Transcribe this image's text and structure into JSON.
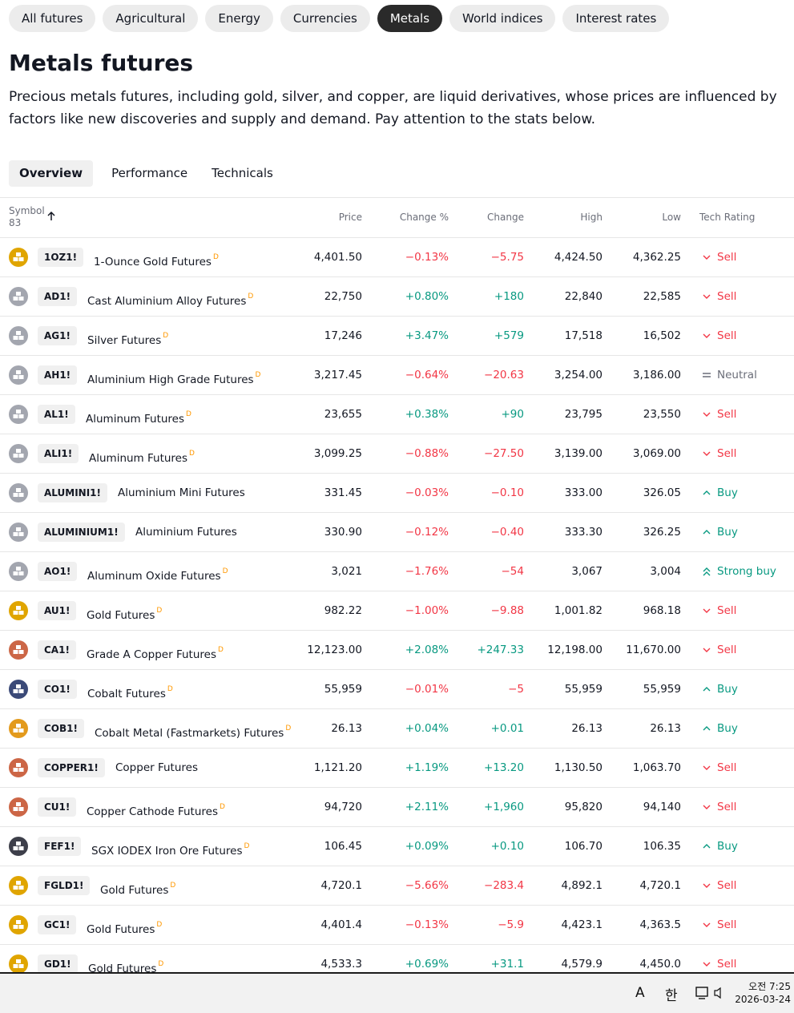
{
  "tabs": [
    "All futures",
    "Agricultural",
    "Energy",
    "Currencies",
    "Metals",
    "World indices",
    "Interest rates"
  ],
  "title": "Metals futures",
  "description": "Precious metals futures, including gold, silver, and copper, are liquid derivatives, whose prices are influenced by factors like new discoveries and supply and demand. Pay attention to the stats below.",
  "subtabs": [
    "Overview",
    "Performance",
    "Technicals"
  ],
  "table": {
    "columns": [
      "Symbol",
      "Price",
      "Change %",
      "Change",
      "High",
      "Low",
      "Tech Rating"
    ],
    "symbol_count": "83",
    "rows": [
      {
        "symbol": "1OZ1!",
        "name": "1-Ounce Gold Futures",
        "badge": "D",
        "price": "4,401.50",
        "change_pct": "−0.13%",
        "change": "−5.75",
        "high": "4,424.50",
        "low": "4,362.25",
        "rating": "Sell",
        "rating_icon": "down",
        "rating_color": "#f23645",
        "icon_color": "#e0a500"
      },
      {
        "symbol": "AD1!",
        "name": "Cast Aluminium Alloy Futures",
        "badge": "D",
        "price": "22,750",
        "change_pct": "+0.80%",
        "change": "+180",
        "high": "22,840",
        "low": "22,585",
        "rating": "Sell",
        "rating_icon": "down",
        "rating_color": "#f23645",
        "icon_color": "#a3a6af"
      },
      {
        "symbol": "AG1!",
        "name": "Silver Futures",
        "badge": "D",
        "price": "17,246",
        "change_pct": "+3.47%",
        "change": "+579",
        "high": "17,518",
        "low": "16,502",
        "rating": "Sell",
        "rating_icon": "down",
        "rating_color": "#f23645",
        "icon_color": "#a3a6af"
      },
      {
        "symbol": "AH1!",
        "name": "Aluminium High Grade Futures",
        "badge": "D",
        "price": "3,217.45",
        "change_pct": "−0.64%",
        "change": "−20.63",
        "high": "3,254.00",
        "low": "3,186.00",
        "rating": "Neutral",
        "rating_icon": "equal",
        "rating_color": "#6a6d78",
        "icon_color": "#a3a6af"
      },
      {
        "symbol": "AL1!",
        "name": "Aluminum Futures",
        "badge": "D",
        "price": "23,655",
        "change_pct": "+0.38%",
        "change": "+90",
        "high": "23,795",
        "low": "23,550",
        "rating": "Sell",
        "rating_icon": "down",
        "rating_color": "#f23645",
        "icon_color": "#a3a6af"
      },
      {
        "symbol": "ALI1!",
        "name": "Aluminum Futures",
        "badge": "D",
        "price": "3,099.25",
        "change_pct": "−0.88%",
        "change": "−27.50",
        "high": "3,139.00",
        "low": "3,069.00",
        "rating": "Sell",
        "rating_icon": "down",
        "rating_color": "#f23645",
        "icon_color": "#a3a6af"
      },
      {
        "symbol": "ALUMINI1!",
        "name": "Aluminium Mini Futures",
        "price": "331.45",
        "change_pct": "−0.03%",
        "change": "−0.10",
        "high": "333.00",
        "low": "326.05",
        "rating": "Buy",
        "rating_icon": "up",
        "rating_color": "#089981",
        "icon_color": "#a3a6af"
      },
      {
        "symbol": "ALUMINIUM1!",
        "name": "Aluminium Futures",
        "price": "330.90",
        "change_pct": "−0.12%",
        "change": "−0.40",
        "high": "333.30",
        "low": "326.25",
        "rating": "Buy",
        "rating_icon": "up",
        "rating_color": "#089981",
        "icon_color": "#a3a6af"
      },
      {
        "symbol": "AO1!",
        "name": "Aluminum Oxide Futures",
        "badge": "D",
        "price": "3,021",
        "change_pct": "−1.76%",
        "change": "−54",
        "high": "3,067",
        "low": "3,004",
        "rating": "Strong buy",
        "rating_icon": "double-up",
        "rating_color": "#089981",
        "icon_color": "#a3a6af"
      },
      {
        "symbol": "AU1!",
        "name": "Gold Futures",
        "badge": "D",
        "price": "982.22",
        "change_pct": "−1.00%",
        "change": "−9.88",
        "high": "1,001.82",
        "low": "968.18",
        "rating": "Sell",
        "rating_icon": "down",
        "rating_color": "#f23645",
        "icon_color": "#e0a500"
      },
      {
        "symbol": "CA1!",
        "name": "Grade A Copper Futures",
        "badge": "D",
        "price": "12,123.00",
        "change_pct": "+2.08%",
        "change": "+247.33",
        "high": "12,198.00",
        "low": "11,670.00",
        "rating": "Sell",
        "rating_icon": "down",
        "rating_color": "#f23645",
        "icon_color": "#cc6646"
      },
      {
        "symbol": "CO1!",
        "name": "Cobalt Futures",
        "badge": "D",
        "price": "55,959",
        "change_pct": "−0.01%",
        "change": "−5",
        "high": "55,959",
        "low": "55,959",
        "rating": "Buy",
        "rating_icon": "up",
        "rating_color": "#089981",
        "icon_color": "#3b4a78"
      },
      {
        "symbol": "COB1!",
        "name": "Cobalt Metal (Fastmarkets) Futures",
        "badge": "D",
        "price": "26.13",
        "change_pct": "+0.04%",
        "change": "+0.01",
        "high": "26.13",
        "low": "26.13",
        "rating": "Buy",
        "rating_icon": "up",
        "rating_color": "#089981",
        "icon_color": "#e39a1c"
      },
      {
        "symbol": "COPPER1!",
        "name": "Copper Futures",
        "price": "1,121.20",
        "change_pct": "+1.19%",
        "change": "+13.20",
        "high": "1,130.50",
        "low": "1,063.70",
        "rating": "Sell",
        "rating_icon": "down",
        "rating_color": "#f23645",
        "icon_color": "#cc6646"
      },
      {
        "symbol": "CU1!",
        "name": "Copper Cathode Futures",
        "badge": "D",
        "price": "94,720",
        "change_pct": "+2.11%",
        "change": "+1,960",
        "high": "95,820",
        "low": "94,140",
        "rating": "Sell",
        "rating_icon": "down",
        "rating_color": "#f23645",
        "icon_color": "#cc6646"
      },
      {
        "symbol": "FEF1!",
        "name": "SGX IODEX Iron Ore Futures",
        "badge": "D",
        "price": "106.45",
        "change_pct": "+0.09%",
        "change": "+0.10",
        "high": "106.70",
        "low": "106.35",
        "rating": "Buy",
        "rating_icon": "up",
        "rating_color": "#089981",
        "icon_color": "#3d3f4a"
      },
      {
        "symbol": "FGLD1!",
        "name": "Gold Futures",
        "badge": "D",
        "price": "4,720.1",
        "change_pct": "−5.66%",
        "change": "−283.4",
        "high": "4,892.1",
        "low": "4,720.1",
        "rating": "Sell",
        "rating_icon": "down",
        "rating_color": "#f23645",
        "icon_color": "#e0a500"
      },
      {
        "symbol": "GC1!",
        "name": "Gold Futures",
        "badge": "D",
        "price": "4,401.4",
        "change_pct": "−0.13%",
        "change": "−5.9",
        "high": "4,423.1",
        "low": "4,363.5",
        "rating": "Sell",
        "rating_icon": "down",
        "rating_color": "#f23645",
        "icon_color": "#e0a500"
      },
      {
        "symbol": "GD1!",
        "name": "Gold Futures",
        "badge": "D",
        "price": "4,533.3",
        "change_pct": "+0.69%",
        "change": "+31.1",
        "high": "4,579.9",
        "low": "4,450.0",
        "rating": "Sell",
        "rating_icon": "down",
        "rating_color": "#f23645",
        "icon_color": "#e0a500"
      }
    ]
  },
  "taskbar": {
    "input_mode": "A",
    "ime": "한",
    "time": "오전 7:25",
    "date": "2026-03-24"
  }
}
